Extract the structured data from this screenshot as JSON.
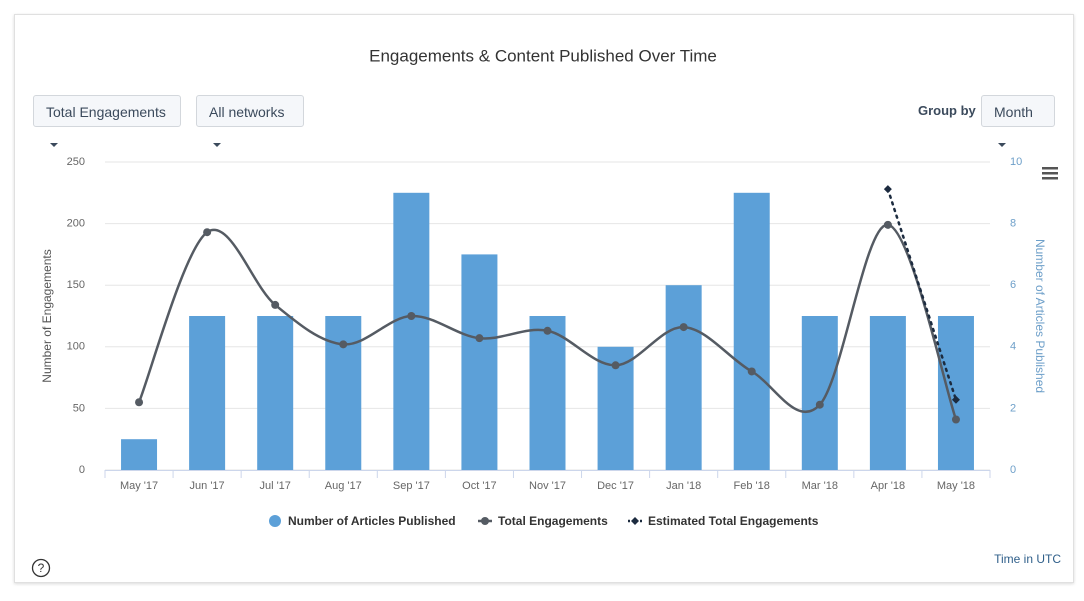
{
  "controls": {
    "metric": "Total Engagements",
    "network": "All networks",
    "group_label": "Group by",
    "group": "Month"
  },
  "footer": "Time in UTC",
  "chart_data": {
    "type": "bar",
    "title": "Engagements & Content Published Over Time",
    "y_label": "Number of Engagements",
    "y2_label": "Number of Articles Published",
    "categories": [
      "May '17",
      "Jun '17",
      "Jul '17",
      "Aug '17",
      "Sep '17",
      "Oct '17",
      "Nov '17",
      "Dec '17",
      "Jan '18",
      "Feb '18",
      "Mar '18",
      "Apr '18",
      "May '18"
    ],
    "ylim": [
      0,
      250
    ],
    "yticks": [
      0,
      50,
      100,
      150,
      200,
      250
    ],
    "y2lim": [
      0,
      10
    ],
    "y2ticks": [
      0,
      2,
      4,
      6,
      8,
      10
    ],
    "grid": true,
    "legend": "bottom",
    "series": [
      {
        "name": "Number of Articles Published",
        "type": "bar",
        "axis": "y2",
        "color": "#5ca0d8",
        "values": [
          1,
          5,
          5,
          5,
          9,
          7,
          5,
          4,
          6,
          9,
          5,
          5,
          5
        ]
      },
      {
        "name": "Total Engagements",
        "type": "line",
        "color": "#555b63",
        "values": [
          55,
          193,
          134,
          102,
          125,
          107,
          113,
          85,
          116,
          80,
          53,
          199,
          41
        ]
      },
      {
        "name": "Estimated Total Engagements",
        "type": "line",
        "style": "dotted",
        "color": "#1c2b3f",
        "values": [
          null,
          null,
          null,
          null,
          null,
          null,
          null,
          null,
          null,
          null,
          null,
          228,
          57
        ]
      }
    ]
  }
}
